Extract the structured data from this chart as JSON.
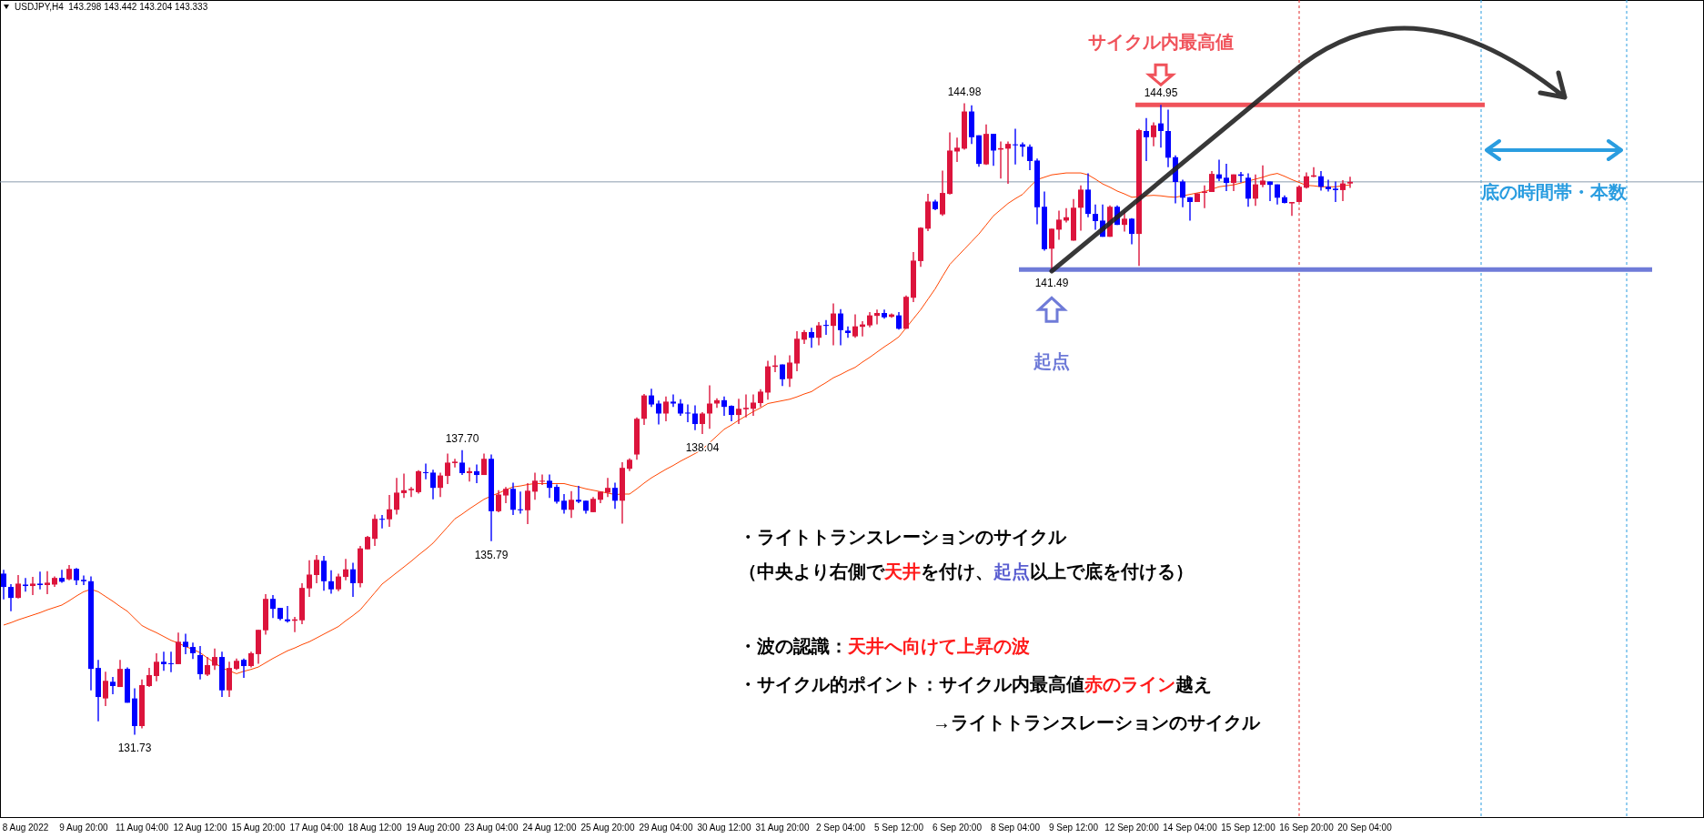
{
  "chart_data": {
    "type": "candlestick",
    "title": "USDJPY,H4  143.298 143.442 143.204 143.333",
    "categories": [
      null,
      null,
      null,
      "8 Aug 2022",
      null,
      null,
      null,
      null,
      null,
      null,
      null,
      "9 Aug 20:00",
      null,
      null,
      null,
      null,
      null,
      null,
      null,
      "11 Aug 04:00",
      null,
      null,
      null,
      null,
      null,
      null,
      null,
      "12 Aug 12:00",
      null,
      null,
      null,
      null,
      null,
      null,
      null,
      "15 Aug 20:00",
      null,
      null,
      null,
      null,
      null,
      null,
      null,
      "17 Aug 04:00",
      null,
      null,
      null,
      null,
      null,
      null,
      null,
      "18 Aug 12:00",
      null,
      null,
      null,
      null,
      null,
      null,
      null,
      "19 Aug 20:00",
      null,
      null,
      null,
      null,
      null,
      null,
      null,
      "23 Aug 04:00",
      null,
      null,
      null,
      null,
      null,
      null,
      null,
      "24 Aug 12:00",
      null,
      null,
      null,
      null,
      null,
      null,
      null,
      "25 Aug 20:00",
      null,
      null,
      null,
      null,
      null,
      null,
      null,
      "29 Aug 04:00",
      null,
      null,
      null,
      null,
      null,
      null,
      null,
      "30 Aug 12:00",
      null,
      null,
      null,
      null,
      null,
      null,
      null,
      "31 Aug 20:00",
      null,
      null,
      null,
      null,
      null,
      null,
      null,
      "2 Sep 04:00",
      null,
      null,
      null,
      null,
      null,
      null,
      null,
      "5 Sep 12:00",
      null,
      null,
      null,
      null,
      null,
      null,
      null,
      "6 Sep 20:00",
      null,
      null,
      null,
      null,
      null,
      null,
      null,
      "8 Sep 04:00",
      null,
      null,
      null,
      null,
      null,
      null,
      null,
      "9 Sep 12:00",
      null,
      null,
      null,
      null,
      null,
      null,
      null,
      "12 Sep 20:00",
      null,
      null,
      null,
      null,
      null,
      null,
      null,
      "14 Sep 04:00",
      null,
      null,
      null,
      null,
      null,
      null,
      null,
      "15 Sep 12:00",
      null,
      null,
      null,
      null,
      null,
      null,
      null,
      "16 Sep 20:00",
      null,
      null,
      null,
      null,
      null,
      null,
      null,
      "20 Sep 04:00",
      null,
      null,
      null,
      null,
      null,
      null,
      null,
      null,
      null,
      null,
      null,
      null,
      null,
      null,
      null,
      null,
      null,
      null,
      null,
      null,
      null,
      null,
      null,
      null,
      null,
      null,
      null,
      null,
      null,
      null,
      null,
      null,
      null,
      null,
      null,
      null,
      null,
      null,
      null,
      null,
      null,
      null,
      null,
      null,
      null,
      null
    ],
    "ohlc": [
      [
        135.11,
        135.19,
        134.57,
        134.83
      ],
      [
        134.83,
        134.89,
        134.32,
        134.6
      ],
      [
        134.6,
        135.08,
        134.59,
        134.9
      ],
      [
        134.88,
        135.02,
        134.73,
        134.85
      ],
      [
        134.85,
        135.04,
        134.66,
        134.9
      ],
      [
        134.9,
        135.15,
        134.78,
        134.87
      ],
      [
        134.87,
        135.16,
        134.68,
        134.92
      ],
      [
        134.88,
        135.05,
        134.83,
        135.02
      ],
      [
        135.02,
        135.19,
        134.92,
        134.94
      ],
      [
        134.99,
        135.29,
        134.97,
        135.21
      ],
      [
        135.21,
        135.23,
        134.87,
        134.97
      ],
      [
        134.98,
        135.07,
        134.87,
        134.95
      ],
      [
        134.95,
        135.05,
        132.66,
        133.11
      ],
      [
        133.13,
        133.3,
        132.01,
        132.52
      ],
      [
        132.49,
        133.05,
        132.33,
        132.86
      ],
      [
        132.84,
        132.94,
        132.58,
        132.75
      ],
      [
        132.73,
        133.3,
        132.73,
        133.11
      ],
      [
        133.11,
        133.14,
        132.4,
        132.4
      ],
      [
        132.49,
        132.7,
        131.73,
        131.91
      ],
      [
        131.91,
        132.89,
        131.86,
        132.77
      ],
      [
        132.75,
        133.13,
        132.73,
        132.98
      ],
      [
        132.96,
        133.44,
        132.85,
        133.26
      ],
      [
        133.26,
        133.47,
        133.07,
        133.21
      ],
      [
        133.23,
        133.47,
        133.04,
        133.21
      ],
      [
        133.21,
        133.87,
        133.21,
        133.68
      ],
      [
        133.68,
        133.85,
        133.42,
        133.57
      ],
      [
        133.57,
        133.66,
        133.32,
        133.44
      ],
      [
        133.4,
        133.59,
        132.89,
        133.0
      ],
      [
        132.99,
        133.36,
        132.96,
        133.19
      ],
      [
        133.18,
        133.54,
        133.09,
        133.36
      ],
      [
        133.36,
        133.47,
        132.52,
        132.66
      ],
      [
        132.66,
        133.26,
        132.52,
        133.13
      ],
      [
        133.11,
        133.33,
        133.09,
        133.28
      ],
      [
        133.3,
        133.33,
        132.92,
        133.17
      ],
      [
        133.17,
        133.47,
        133.14,
        133.44
      ],
      [
        133.42,
        133.93,
        133.22,
        133.93
      ],
      [
        133.92,
        134.68,
        133.83,
        134.58
      ],
      [
        134.58,
        134.66,
        134.18,
        134.37
      ],
      [
        134.39,
        134.39,
        134.13,
        134.16
      ],
      [
        134.15,
        134.43,
        134.08,
        134.11
      ],
      [
        134.12,
        134.2,
        133.88,
        134.15
      ],
      [
        134.13,
        134.91,
        134.05,
        134.81
      ],
      [
        134.8,
        135.39,
        134.62,
        135.09
      ],
      [
        135.08,
        135.5,
        134.91,
        135.4
      ],
      [
        135.38,
        135.48,
        134.75,
        134.95
      ],
      [
        134.95,
        135.18,
        134.69,
        134.78
      ],
      [
        134.78,
        135.11,
        134.74,
        135.05
      ],
      [
        135.04,
        135.42,
        134.97,
        135.2
      ],
      [
        135.2,
        135.34,
        134.62,
        134.91
      ],
      [
        134.91,
        135.69,
        134.82,
        135.64
      ],
      [
        135.62,
        135.9,
        135.62,
        135.88
      ],
      [
        135.84,
        136.35,
        135.69,
        136.26
      ],
      [
        136.26,
        136.34,
        136.06,
        136.25
      ],
      [
        136.25,
        136.76,
        136.09,
        136.46
      ],
      [
        136.45,
        137.12,
        136.35,
        136.81
      ],
      [
        136.8,
        137.21,
        136.7,
        136.86
      ],
      [
        136.86,
        136.93,
        136.72,
        136.89
      ],
      [
        136.82,
        137.28,
        136.79,
        137.26
      ],
      [
        137.24,
        137.42,
        137.09,
        137.22
      ],
      [
        137.23,
        137.29,
        136.67,
        136.91
      ],
      [
        136.91,
        137.23,
        136.72,
        137.17
      ],
      [
        137.16,
        137.63,
        136.99,
        137.44
      ],
      [
        137.43,
        137.52,
        137.34,
        137.46
      ],
      [
        137.44,
        137.7,
        137.18,
        137.22
      ],
      [
        137.22,
        137.34,
        137.04,
        137.26
      ],
      [
        137.26,
        137.4,
        137.01,
        137.18
      ],
      [
        137.18,
        137.63,
        137.18,
        137.52
      ],
      [
        137.52,
        137.61,
        135.79,
        136.42
      ],
      [
        136.42,
        136.86,
        136.4,
        136.77
      ],
      [
        136.75,
        136.93,
        136.59,
        136.89
      ],
      [
        136.89,
        137.02,
        136.34,
        136.45
      ],
      [
        136.46,
        136.83,
        136.37,
        136.44
      ],
      [
        136.44,
        137.01,
        136.15,
        136.85
      ],
      [
        136.83,
        137.23,
        136.66,
        137.06
      ],
      [
        137.04,
        137.19,
        136.97,
        137.06
      ],
      [
        137.06,
        137.19,
        136.7,
        136.91
      ],
      [
        136.93,
        136.98,
        136.58,
        136.62
      ],
      [
        136.64,
        136.78,
        136.37,
        136.45
      ],
      [
        136.45,
        136.84,
        136.28,
        136.66
      ],
      [
        136.66,
        136.95,
        136.59,
        136.62
      ],
      [
        136.64,
        136.64,
        136.37,
        136.43
      ],
      [
        136.4,
        136.72,
        136.4,
        136.68
      ],
      [
        136.66,
        136.83,
        136.59,
        136.83
      ],
      [
        136.81,
        137.12,
        136.72,
        136.91
      ],
      [
        136.91,
        137.02,
        136.47,
        136.64
      ],
      [
        136.64,
        137.45,
        136.16,
        137.33
      ],
      [
        137.31,
        137.53,
        137.26,
        137.5
      ],
      [
        137.61,
        138.39,
        137.5,
        138.36
      ],
      [
        138.36,
        138.88,
        138.23,
        138.85
      ],
      [
        138.85,
        138.99,
        138.61,
        138.66
      ],
      [
        138.68,
        138.74,
        138.24,
        138.47
      ],
      [
        138.47,
        138.83,
        138.31,
        138.72
      ],
      [
        138.72,
        138.87,
        138.61,
        138.68
      ],
      [
        138.68,
        138.77,
        138.42,
        138.47
      ],
      [
        138.49,
        138.66,
        138.29,
        138.47
      ],
      [
        138.47,
        138.64,
        138.12,
        138.25
      ],
      [
        138.25,
        138.5,
        138.04,
        138.47
      ],
      [
        138.47,
        139.06,
        138.15,
        138.68
      ],
      [
        138.68,
        138.79,
        138.59,
        138.75
      ],
      [
        138.75,
        138.83,
        138.42,
        138.61
      ],
      [
        138.63,
        138.64,
        138.31,
        138.44
      ],
      [
        138.44,
        138.78,
        138.25,
        138.57
      ],
      [
        138.56,
        138.87,
        138.39,
        138.59
      ],
      [
        138.57,
        138.87,
        138.42,
        138.7
      ],
      [
        138.69,
        138.98,
        138.61,
        138.93
      ],
      [
        138.91,
        139.58,
        138.76,
        139.46
      ],
      [
        139.45,
        139.69,
        139.34,
        139.48
      ],
      [
        139.5,
        139.5,
        139.05,
        139.19
      ],
      [
        139.2,
        139.69,
        139.03,
        139.54
      ],
      [
        139.52,
        140.2,
        139.36,
        140.04
      ],
      [
        140.02,
        140.22,
        139.93,
        140.18
      ],
      [
        140.18,
        140.27,
        139.85,
        140.06
      ],
      [
        140.06,
        140.39,
        139.9,
        140.32
      ],
      [
        140.33,
        140.43,
        140.12,
        140.31
      ],
      [
        140.31,
        140.78,
        139.9,
        140.57
      ],
      [
        140.57,
        140.66,
        139.9,
        140.22
      ],
      [
        140.21,
        140.3,
        140.06,
        140.16
      ],
      [
        140.09,
        140.55,
        140.06,
        140.3
      ],
      [
        140.29,
        140.41,
        140.09,
        140.34
      ],
      [
        140.32,
        140.6,
        140.28,
        140.53
      ],
      [
        140.52,
        140.65,
        140.34,
        140.58
      ],
      [
        140.58,
        140.65,
        140.46,
        140.49
      ],
      [
        140.5,
        140.57,
        140.48,
        140.55
      ],
      [
        140.53,
        140.6,
        140.23,
        140.25
      ],
      [
        140.25,
        140.95,
        140.25,
        140.92
      ],
      [
        140.9,
        141.86,
        140.81,
        141.68
      ],
      [
        141.67,
        142.38,
        141.55,
        142.37
      ],
      [
        142.35,
        143.08,
        142.3,
        142.92
      ],
      [
        142.92,
        142.96,
        142.74,
        142.76
      ],
      [
        142.65,
        143.57,
        142.62,
        143.1
      ],
      [
        143.08,
        144.37,
        143.07,
        143.99
      ],
      [
        143.97,
        144.26,
        143.75,
        144.05
      ],
      [
        144.03,
        144.98,
        144.01,
        144.81
      ],
      [
        144.81,
        144.94,
        144.13,
        144.27
      ],
      [
        144.31,
        144.31,
        143.65,
        143.71
      ],
      [
        143.7,
        144.54,
        143.69,
        144.34
      ],
      [
        144.34,
        144.34,
        143.67,
        143.99
      ],
      [
        144.01,
        144.18,
        143.4,
        144.04
      ],
      [
        144.03,
        144.18,
        143.29,
        144.13
      ],
      [
        144.12,
        144.45,
        143.7,
        144.11
      ],
      [
        144.12,
        144.16,
        143.86,
        144.07
      ],
      [
        144.07,
        144.12,
        143.58,
        143.77
      ],
      [
        143.78,
        143.82,
        142.44,
        142.8
      ],
      [
        142.81,
        143.13,
        141.89,
        141.92
      ],
      [
        141.93,
        142.35,
        141.49,
        142.35
      ],
      [
        142.33,
        142.73,
        142.12,
        142.54
      ],
      [
        142.52,
        142.78,
        142.48,
        142.59
      ],
      [
        142.1,
        142.97,
        142.1,
        142.79
      ],
      [
        142.79,
        143.26,
        142.31,
        143.17
      ],
      [
        143.17,
        143.51,
        142.59,
        142.66
      ],
      [
        142.66,
        142.86,
        142.33,
        142.51
      ],
      [
        142.52,
        142.86,
        142.18,
        142.18
      ],
      [
        142.18,
        142.84,
        142.18,
        142.81
      ],
      [
        142.81,
        142.84,
        142.43,
        142.43
      ],
      [
        142.43,
        142.72,
        142.29,
        142.56
      ],
      [
        142.56,
        142.57,
        142.02,
        142.24
      ],
      [
        142.24,
        144.45,
        141.57,
        144.42
      ],
      [
        144.4,
        144.67,
        143.77,
        144.27
      ],
      [
        144.27,
        144.58,
        144.08,
        144.52
      ],
      [
        144.56,
        144.95,
        144.05,
        144.4
      ],
      [
        144.4,
        144.85,
        143.64,
        143.84
      ],
      [
        143.85,
        143.89,
        142.88,
        143.33
      ],
      [
        143.34,
        143.38,
        142.8,
        143.0
      ],
      [
        143.01,
        143.01,
        142.52,
        142.91
      ],
      [
        142.91,
        143.09,
        142.91,
        143.09
      ],
      [
        143.1,
        143.26,
        142.78,
        143.13
      ],
      [
        143.12,
        143.56,
        143.12,
        143.5
      ],
      [
        143.49,
        143.8,
        143.35,
        143.4
      ],
      [
        143.42,
        143.71,
        143.14,
        143.31
      ],
      [
        143.31,
        143.49,
        143.14,
        143.49
      ],
      [
        143.49,
        143.54,
        143.32,
        143.46
      ],
      [
        143.42,
        143.51,
        142.81,
        142.98
      ],
      [
        142.98,
        143.49,
        142.83,
        143.28
      ],
      [
        143.27,
        143.68,
        143.22,
        143.36
      ],
      [
        143.34,
        143.34,
        142.93,
        143.27
      ],
      [
        143.28,
        143.28,
        142.86,
        143.0
      ],
      [
        143.01,
        143.05,
        142.88,
        142.89
      ],
      [
        142.88,
        142.91,
        142.62,
        142.91
      ],
      [
        142.91,
        143.26,
        142.91,
        143.23
      ],
      [
        143.21,
        143.53,
        143.19,
        143.45
      ],
      [
        143.44,
        143.64,
        143.43,
        143.47
      ],
      [
        143.45,
        143.56,
        143.15,
        143.23
      ],
      [
        143.23,
        143.38,
        143.13,
        143.18
      ],
      [
        143.19,
        143.34,
        142.91,
        143.16
      ],
      [
        143.16,
        143.37,
        142.93,
        143.3
      ],
      [
        143.298,
        143.442,
        143.204,
        143.333
      ],
      null,
      null,
      null,
      null,
      null,
      null,
      null,
      null,
      null,
      null,
      null,
      null,
      null,
      null,
      null,
      null,
      null,
      null,
      null,
      null,
      null,
      null,
      null,
      null,
      null,
      null,
      null,
      null,
      null,
      null,
      null,
      null,
      null,
      null,
      null,
      null,
      null,
      null,
      null,
      null,
      null,
      null,
      null,
      null,
      null,
      null,
      null,
      null
    ],
    "colors": [
      "#0000ff",
      "#0000ff",
      "#dc143c",
      "#0000ff",
      "#dc143c",
      "#0000ff",
      "#dc143c",
      "#dc143c",
      "#0000ff",
      "#dc143c",
      "#0000ff",
      "#0000ff",
      "#0000ff",
      "#0000ff",
      "#dc143c",
      "#0000ff",
      "#dc143c",
      "#0000ff",
      "#0000ff",
      "#dc143c",
      "#dc143c",
      "#dc143c",
      "#0000ff",
      "#0000ff",
      "#dc143c",
      "#0000ff",
      "#0000ff",
      "#0000ff",
      "#dc143c",
      "#dc143c",
      "#0000ff",
      "#dc143c",
      "#dc143c",
      "#0000ff",
      "#dc143c",
      "#dc143c",
      "#dc143c",
      "#0000ff",
      "#0000ff",
      "#0000ff",
      "#dc143c",
      "#dc143c",
      "#dc143c",
      "#dc143c",
      "#0000ff",
      "#0000ff",
      "#dc143c",
      "#dc143c",
      "#0000ff",
      "#dc143c",
      "#dc143c",
      "#dc143c",
      "#0000ff",
      "#dc143c",
      "#dc143c",
      "#dc143c",
      "#dc143c",
      "#dc143c",
      "#0000ff",
      "#0000ff",
      "#dc143c",
      "#dc143c",
      "#dc143c",
      "#0000ff",
      "#dc143c",
      "#0000ff",
      "#dc143c",
      "#0000ff",
      "#dc143c",
      "#dc143c",
      "#0000ff",
      "#0000ff",
      "#dc143c",
      "#dc143c",
      "#dc143c",
      "#0000ff",
      "#0000ff",
      "#0000ff",
      "#dc143c",
      "#0000ff",
      "#0000ff",
      "#dc143c",
      "#dc143c",
      "#dc143c",
      "#0000ff",
      "#dc143c",
      "#dc143c",
      "#dc143c",
      "#dc143c",
      "#0000ff",
      "#0000ff",
      "#dc143c",
      "#0000ff",
      "#0000ff",
      "#0000ff",
      "#0000ff",
      "#dc143c",
      "#dc143c",
      "#dc143c",
      "#0000ff",
      "#0000ff",
      "#dc143c",
      "#dc143c",
      "#dc143c",
      "#dc143c",
      "#dc143c",
      "#dc143c",
      "#0000ff",
      "#dc143c",
      "#dc143c",
      "#dc143c",
      "#0000ff",
      "#dc143c",
      "#0000ff",
      "#dc143c",
      "#0000ff",
      "#0000ff",
      "#dc143c",
      "#dc143c",
      "#dc143c",
      "#dc143c",
      "#0000ff",
      "#dc143c",
      "#0000ff",
      "#dc143c",
      "#dc143c",
      "#dc143c",
      "#dc143c",
      "#0000ff",
      "#dc143c",
      "#dc143c",
      "#dc143c",
      "#dc143c",
      "#0000ff",
      "#0000ff",
      "#dc143c",
      "#0000ff",
      "#dc143c",
      "#dc143c",
      "#0000ff",
      "#0000ff",
      "#0000ff",
      "#0000ff",
      "#0000ff",
      "#dc143c",
      "#dc143c",
      "#dc143c",
      "#dc143c",
      "#dc143c",
      "#0000ff",
      "#0000ff",
      "#0000ff",
      "#dc143c",
      "#0000ff",
      "#dc143c",
      "#0000ff",
      "#dc143c",
      "#0000ff",
      "#dc143c",
      "#0000ff",
      "#0000ff",
      "#0000ff",
      "#0000ff",
      "#0000ff",
      "#dc143c",
      "#dc143c",
      "#dc143c",
      "#0000ff",
      "#0000ff",
      "#dc143c",
      "#0000ff",
      "#0000ff",
      "#dc143c",
      "#dc143c",
      "#0000ff",
      "#0000ff",
      "#0000ff",
      "#dc143c",
      "#dc143c",
      "#dc143c",
      "#dc143c",
      "#0000ff",
      "#0000ff",
      "#0000ff",
      "#dc143c",
      "#dc143c",
      null,
      null,
      null,
      null,
      null,
      null,
      null,
      null,
      null,
      null,
      null,
      null,
      null,
      null,
      null,
      null,
      null,
      null,
      null,
      null,
      null,
      null,
      null,
      null,
      null,
      null,
      null,
      null,
      null,
      null,
      null,
      null,
      null,
      null,
      null,
      null,
      null,
      null,
      null,
      null,
      null,
      null,
      null,
      null,
      null,
      null,
      null,
      null
    ],
    "series": [
      {
        "type": "line",
        "color": "#ff4500",
        "values": [
          134.03,
          134.08,
          134.14,
          134.19,
          134.24,
          134.29,
          134.35,
          134.4,
          134.45,
          134.54,
          134.64,
          134.73,
          134.78,
          134.73,
          134.63,
          134.53,
          134.42,
          134.32,
          134.17,
          134.02,
          133.94,
          133.87,
          133.79,
          133.71,
          133.65,
          133.58,
          133.52,
          133.45,
          133.34,
          133.24,
          133.13,
          133.07,
          133.01,
          133.06,
          133.1,
          133.15,
          133.24,
          133.33,
          133.41,
          133.49,
          133.55,
          133.62,
          133.68,
          133.76,
          133.84,
          133.92,
          134.0,
          134.12,
          134.23,
          134.35,
          134.53,
          134.71,
          134.89,
          135.01,
          135.13,
          135.25,
          135.37,
          135.5,
          135.62,
          135.75,
          135.92,
          136.09,
          136.26,
          136.36,
          136.47,
          136.57,
          136.67,
          136.74,
          136.8,
          136.87,
          136.93,
          136.95,
          136.98,
          137.0,
          137.0,
          137.0,
          137.0,
          137.0,
          136.96,
          136.93,
          136.89,
          136.86,
          136.83,
          136.8,
          136.77,
          136.78,
          136.78,
          136.89,
          137.01,
          137.12,
          137.21,
          137.3,
          137.38,
          137.47,
          137.55,
          137.63,
          137.72,
          137.86,
          138.0,
          138.14,
          138.23,
          138.33,
          138.42,
          138.51,
          138.59,
          138.68,
          138.71,
          138.74,
          138.77,
          138.82,
          138.88,
          138.93,
          139.03,
          139.12,
          139.22,
          139.29,
          139.37,
          139.44,
          139.55,
          139.65,
          139.76,
          139.87,
          139.97,
          140.08,
          140.27,
          140.46,
          140.65,
          140.87,
          141.09,
          141.35,
          141.6,
          141.76,
          141.92,
          142.08,
          142.24,
          142.43,
          142.62,
          142.75,
          142.88,
          142.98,
          143.07,
          143.23,
          143.38,
          143.43,
          143.48,
          143.5,
          143.52,
          143.52,
          143.52,
          143.48,
          143.39,
          143.29,
          143.22,
          143.14,
          143.08,
          143.01,
          143.02,
          143.04,
          143.05,
          143.04,
          143.02,
          143.01,
          143.04,
          143.07,
          143.1,
          143.13,
          143.18,
          143.23,
          143.25,
          143.27,
          143.31,
          143.35,
          143.39,
          143.43,
          143.48,
          143.51,
          143.45,
          143.38,
          143.32,
          143.26,
          143.25,
          143.23,
          143.23,
          143.23,
          143.25,
          143.27,
          null,
          null,
          null,
          null,
          null,
          null,
          null,
          null,
          null,
          null,
          null,
          null,
          null,
          null,
          null,
          null,
          null,
          null,
          null,
          null,
          null,
          null,
          null,
          null,
          null,
          null,
          null,
          null,
          null,
          null,
          null,
          null,
          null,
          null,
          null,
          null,
          null,
          null,
          null,
          null,
          null,
          null,
          null,
          null,
          null,
          null,
          null,
          null
        ]
      },
      {
        "type": "line",
        "color": "#f0525a",
        "values": [
          null,
          null,
          null,
          null,
          null,
          null,
          null,
          null,
          null,
          null,
          null,
          null,
          null,
          null,
          null,
          null,
          null,
          null,
          null,
          null,
          null,
          null,
          null,
          null,
          null,
          null,
          null,
          null,
          null,
          null,
          null,
          null,
          null,
          null,
          null,
          null,
          null,
          null,
          null,
          null,
          null,
          null,
          null,
          null,
          null,
          null,
          null,
          null,
          null,
          null,
          null,
          null,
          null,
          null,
          null,
          null,
          null,
          null,
          null,
          null,
          null,
          null,
          null,
          null,
          null,
          null,
          null,
          null,
          null,
          null,
          null,
          null,
          null,
          null,
          null,
          null,
          null,
          null,
          null,
          null,
          null,
          null,
          null,
          null,
          null,
          null,
          null,
          null,
          null,
          null,
          null,
          null,
          null,
          null,
          null,
          null,
          null,
          null,
          null,
          null,
          null,
          null,
          null,
          null,
          null,
          null,
          null,
          null,
          null,
          null,
          null,
          null,
          null,
          null,
          null,
          null,
          null,
          null,
          null,
          null,
          null,
          null,
          null,
          null,
          null,
          null,
          null,
          null,
          null,
          null,
          null,
          null,
          null,
          null,
          null,
          null,
          null,
          null,
          null,
          null,
          null,
          null,
          null,
          null,
          null,
          null,
          null,
          null,
          null,
          null,
          null,
          null,
          null,
          null,
          null,
          null,
          144.95,
          144.95,
          144.95,
          144.95,
          144.95,
          144.95,
          144.95,
          144.95,
          144.95,
          144.95,
          144.95,
          144.95,
          144.95,
          144.95,
          144.95,
          144.95,
          144.95,
          144.95,
          144.95,
          144.95,
          144.95,
          144.95,
          144.95,
          144.95,
          144.95,
          144.95,
          144.95,
          144.95,
          144.95,
          144.95,
          144.95,
          144.95,
          144.95,
          144.95,
          144.95,
          144.95,
          144.95,
          144.95,
          144.95,
          144.95,
          144.95,
          144.95,
          144.95,
          144.95,
          144.95,
          144.95,
          144.95,
          144.95,
          null,
          null,
          null,
          null,
          null,
          null,
          null,
          null,
          null,
          null,
          null,
          null,
          null,
          null,
          null,
          null,
          null,
          null,
          null,
          null,
          null,
          null,
          null,
          null,
          null,
          null,
          null,
          null,
          null,
          null
        ]
      },
      {
        "type": "line",
        "color": "#6f7bd8",
        "values": [
          null,
          null,
          null,
          null,
          null,
          null,
          null,
          null,
          null,
          null,
          null,
          null,
          null,
          null,
          null,
          null,
          null,
          null,
          null,
          null,
          null,
          null,
          null,
          null,
          null,
          null,
          null,
          null,
          null,
          null,
          null,
          null,
          null,
          null,
          null,
          null,
          null,
          null,
          null,
          null,
          null,
          null,
          null,
          null,
          null,
          null,
          null,
          null,
          null,
          null,
          null,
          null,
          null,
          null,
          null,
          null,
          null,
          null,
          null,
          null,
          null,
          null,
          null,
          null,
          null,
          null,
          null,
          null,
          null,
          null,
          null,
          null,
          null,
          null,
          null,
          null,
          null,
          null,
          null,
          null,
          null,
          null,
          null,
          null,
          null,
          null,
          null,
          null,
          null,
          null,
          null,
          null,
          null,
          null,
          null,
          null,
          null,
          null,
          null,
          null,
          null,
          null,
          null,
          null,
          null,
          null,
          null,
          null,
          null,
          null,
          null,
          null,
          null,
          null,
          null,
          null,
          null,
          null,
          null,
          null,
          null,
          null,
          null,
          null,
          null,
          null,
          null,
          null,
          null,
          null,
          null,
          null,
          null,
          null,
          null,
          null,
          null,
          null,
          null,
          null,
          141.49,
          141.49,
          141.49,
          141.49,
          141.49,
          141.49,
          141.49,
          141.49,
          141.49,
          141.49,
          141.49,
          141.49,
          141.49,
          141.49,
          141.49,
          141.49,
          141.49,
          141.49,
          141.49,
          141.49,
          141.49,
          141.49,
          141.49,
          141.49,
          141.49,
          141.49,
          141.49,
          141.49,
          141.49,
          141.49,
          141.49,
          141.49,
          141.49,
          141.49,
          141.49,
          141.49,
          141.49,
          141.49,
          141.49,
          141.49,
          141.49,
          141.49,
          141.49,
          141.49,
          141.49,
          141.49,
          141.49,
          141.49,
          141.49,
          141.49,
          141.49,
          141.49,
          141.49,
          141.49,
          141.49,
          141.49,
          141.49,
          141.49,
          141.49,
          141.49,
          141.49,
          141.49,
          141.49,
          141.49,
          141.49,
          141.49,
          141.49,
          141.49,
          141.49,
          141.49,
          141.49,
          141.49,
          141.49,
          141.49,
          141.49,
          141.49,
          141.49,
          141.49,
          141.49,
          141.49,
          141.49,
          141.49,
          141.49,
          141.49,
          141.49,
          141.49,
          141.49,
          null,
          null,
          null,
          null,
          null,
          null,
          null
        ]
      }
    ],
    "ylim": [
      130.0,
      147.15
    ],
    "tick_labels": "x",
    "ref_lines": [
      {
        "axis": "y",
        "value": 143.333,
        "color": "#8a9cae",
        "line_style": "solid"
      }
    ],
    "annotations": [
      {
        "text": "144.98",
        "y": 144.98
      },
      {
        "text": "144.95",
        "y": 144.95
      },
      {
        "text": "141.49",
        "y": 141.49
      },
      {
        "text": "137.70",
        "y": 137.7
      },
      {
        "text": "138.04",
        "y": 138.04
      },
      {
        "text": "135.79",
        "y": 135.79
      },
      {
        "text": "131.73",
        "y": 131.73
      },
      "サイクル内最高値",
      "起点",
      "底の時間帯・本数",
      "・ライトトランスレーションのサイクル",
      "（中央より右側で天井を付け、起点以上で底を付ける）",
      "・波の認識：天井へ向けて上昇の波",
      "・サイクル的ポイント：サイクル内最高値赤のライン越え",
      "→ライトトランスレーションのサイクル"
    ]
  }
}
